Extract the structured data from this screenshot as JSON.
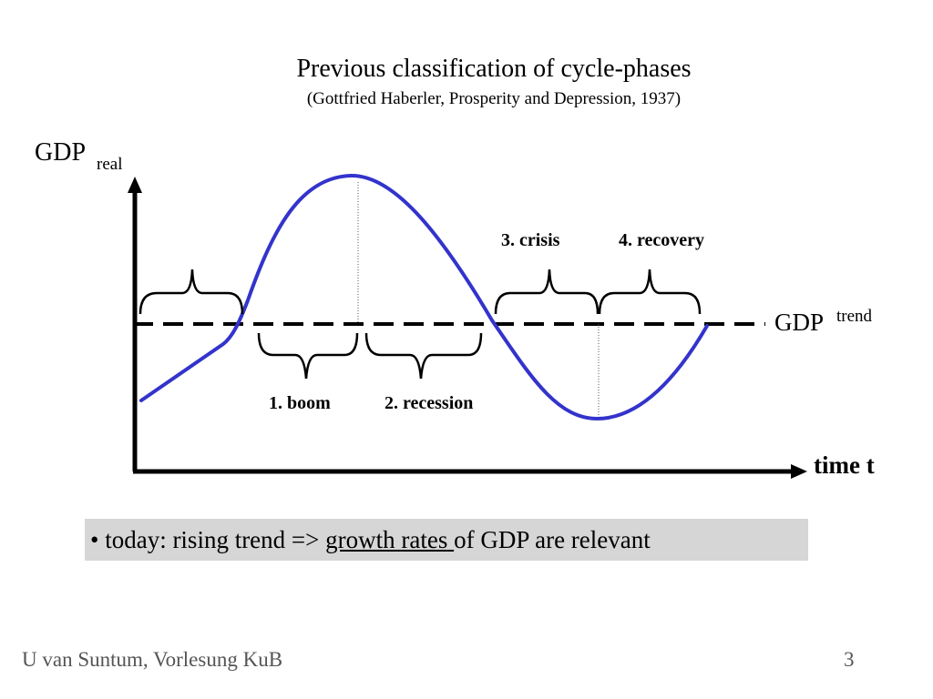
{
  "slide": {
    "title": "Previous classification of cycle-phases",
    "subtitle": "(Gottfried Haberler, Prosperity and Depression, 1937)"
  },
  "diagram": {
    "y_axis_label": "GDP",
    "y_axis_sub": "real",
    "x_axis_label": "time t",
    "trend_label": "GDP",
    "trend_sup": "trend",
    "phases": [
      {
        "label": "1. boom"
      },
      {
        "label": "2. recession"
      },
      {
        "label": "3. crisis"
      },
      {
        "label": "4. recovery"
      }
    ],
    "colors": {
      "curve": "#3333cc",
      "axis": "#000000",
      "note_bg": "#d6d6d6"
    }
  },
  "note": {
    "prefix": "• today: rising trend => ",
    "underlined": "growth rates ",
    "suffix": "of GDP are relevant"
  },
  "footer": {
    "author": "U van Suntum, Vorlesung KuB",
    "page": "3"
  }
}
